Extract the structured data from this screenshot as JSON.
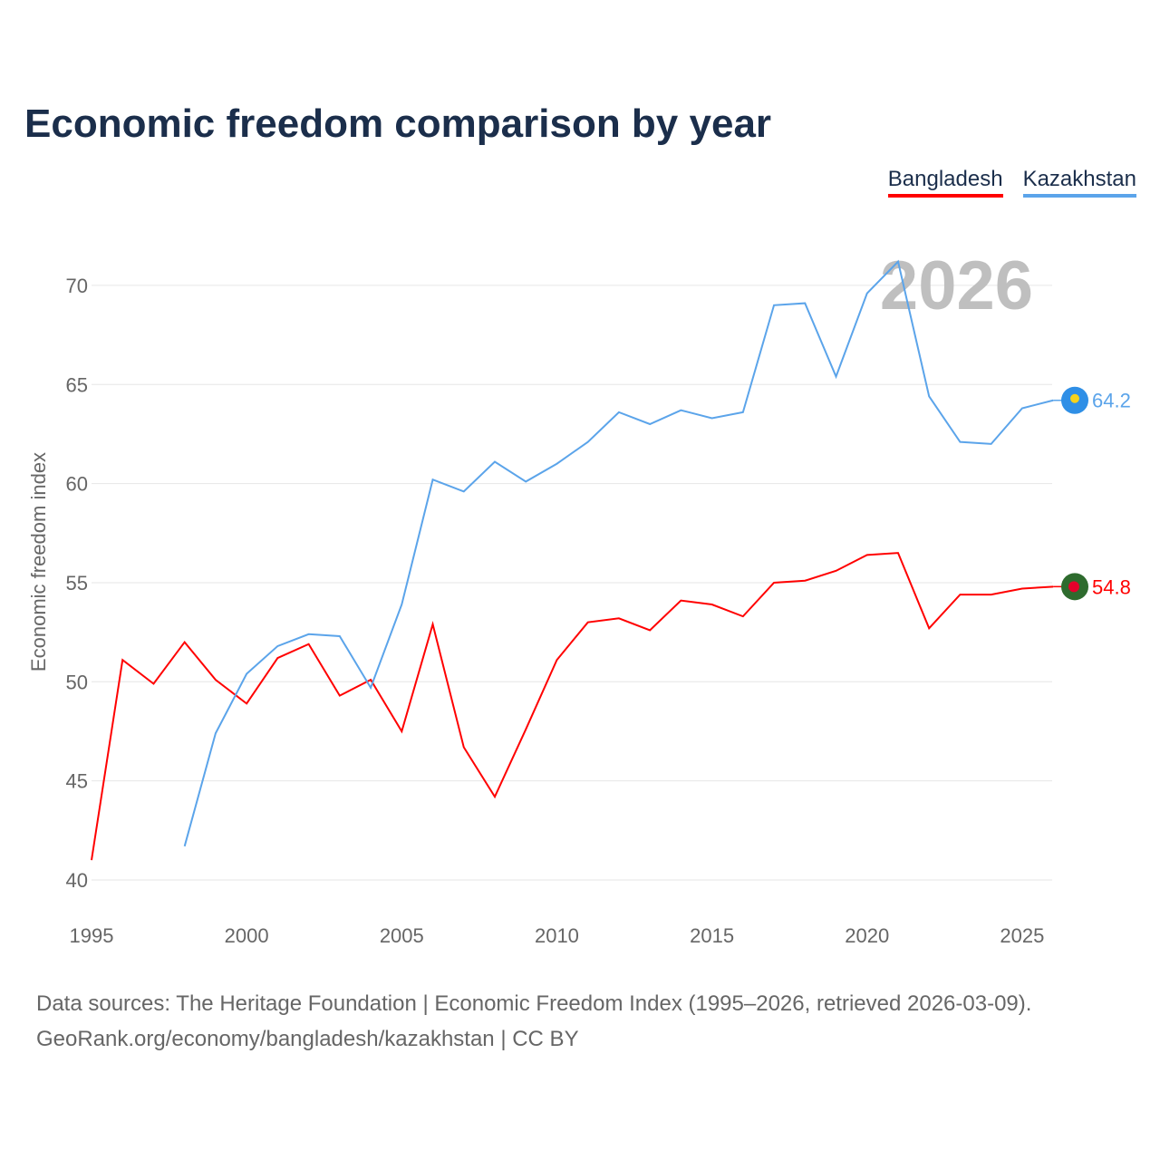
{
  "chart_data": {
    "type": "line",
    "title": "Economic freedom comparison by year",
    "xlabel": "",
    "ylabel": "Economic freedom index",
    "xlim": [
      1995,
      2026
    ],
    "ylim": [
      40,
      72
    ],
    "x_ticks": [
      1995,
      2000,
      2005,
      2010,
      2015,
      2020,
      2025
    ],
    "y_ticks": [
      40,
      45,
      50,
      55,
      60,
      65,
      70
    ],
    "grid": true,
    "legend_placement": "top-right",
    "year_watermark": "2026",
    "series": [
      {
        "name": "Bangladesh",
        "color": "#ff0000",
        "end_label": "54.8",
        "x": [
          1995,
          1996,
          1997,
          1998,
          1999,
          2000,
          2001,
          2002,
          2003,
          2004,
          2005,
          2006,
          2007,
          2008,
          2009,
          2010,
          2011,
          2012,
          2013,
          2014,
          2015,
          2016,
          2017,
          2018,
          2019,
          2020,
          2021,
          2022,
          2023,
          2024,
          2025,
          2026
        ],
        "values": [
          41.0,
          51.1,
          49.9,
          52.0,
          50.1,
          48.9,
          51.2,
          51.9,
          49.3,
          50.1,
          47.5,
          52.9,
          46.7,
          44.2,
          47.6,
          51.1,
          53.0,
          53.2,
          52.6,
          54.1,
          53.9,
          53.3,
          55.0,
          55.1,
          55.6,
          56.4,
          56.5,
          52.7,
          54.4,
          54.4,
          54.7,
          54.8
        ]
      },
      {
        "name": "Kazakhstan",
        "color": "#5ba4ea",
        "end_label": "64.2",
        "x": [
          1998,
          1999,
          2000,
          2001,
          2002,
          2003,
          2004,
          2005,
          2006,
          2007,
          2008,
          2009,
          2010,
          2011,
          2012,
          2013,
          2014,
          2015,
          2016,
          2017,
          2018,
          2019,
          2020,
          2021,
          2022,
          2023,
          2024,
          2025,
          2026
        ],
        "values": [
          41.7,
          47.4,
          50.4,
          51.8,
          52.4,
          52.3,
          49.7,
          53.9,
          60.2,
          59.6,
          61.1,
          60.1,
          61.0,
          62.1,
          63.6,
          63.0,
          63.7,
          63.3,
          63.6,
          69.0,
          69.1,
          65.4,
          69.6,
          71.2,
          64.4,
          62.1,
          62.0,
          63.8,
          64.2
        ]
      }
    ]
  },
  "source_line1": "Data sources: The Heritage Foundation | Economic Freedom Index (1995–2026, retrieved 2026-03-09).",
  "source_line2": "GeoRank.org/economy/bangladesh/kazakhstan | CC BY"
}
